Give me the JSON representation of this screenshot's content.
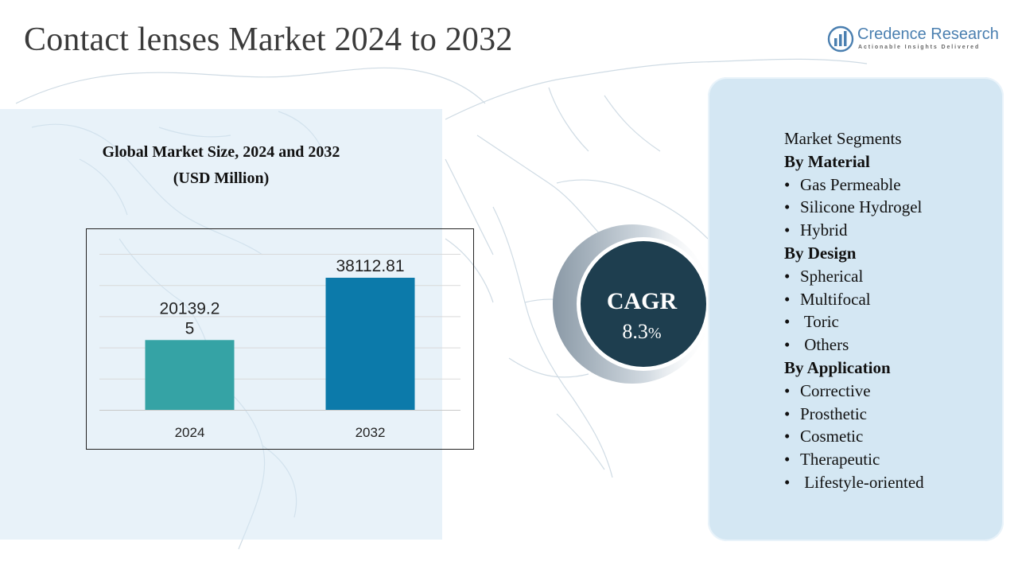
{
  "title": "Contact lenses  Market 2024 to 2032",
  "logo": {
    "name": "Credence Research",
    "tagline": "Actionable Insights Delivered",
    "icon": "bar-chart-globe-icon",
    "color": "#4a7fb0"
  },
  "chart_title": {
    "line1": "Global Market Size, 2024 and 2032",
    "line2": "(USD Million)"
  },
  "chart_data": {
    "type": "bar",
    "categories": [
      "2024",
      "2032"
    ],
    "values": [
      20139.25,
      38112.81
    ],
    "value_labels": [
      "20139.2\n5",
      "38112.81"
    ],
    "colors": [
      "#35a3a5",
      "#0c7aaa"
    ],
    "ylim": [
      0,
      45000
    ],
    "grid": true,
    "legend": false
  },
  "cagr": {
    "label": "CAGR",
    "value": "8.3",
    "unit": "%"
  },
  "segments": {
    "heading": "Market Segments",
    "groups": [
      {
        "title": "By Material",
        "items": [
          "Gas Permeable",
          "Silicone Hydrogel",
          "Hybrid"
        ]
      },
      {
        "title": "By Design",
        "items": [
          "Spherical",
          "Multifocal",
          " Toric",
          " Others"
        ]
      },
      {
        "title": "By Application",
        "items": [
          "Corrective",
          "Prosthetic",
          "Cosmetic",
          "Therapeutic",
          " Lifestyle-oriented"
        ]
      }
    ]
  },
  "colors": {
    "panel": "#d4e7f3",
    "cagr_circle": "#1e3e4f",
    "map_line": "#c9d6e0"
  }
}
